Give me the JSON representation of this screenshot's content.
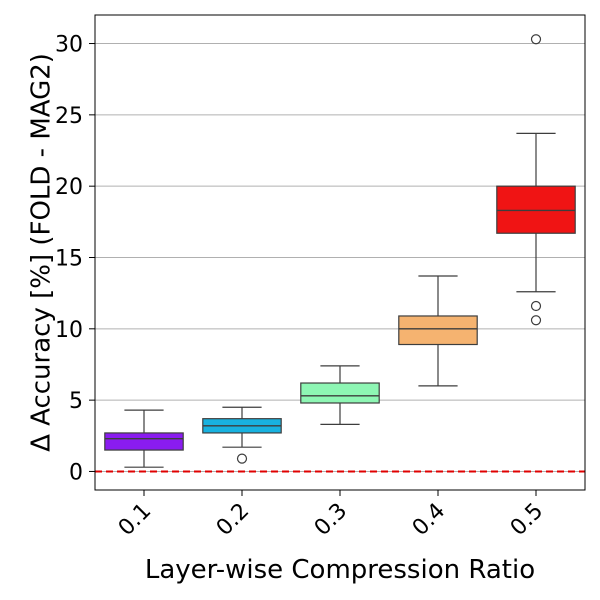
{
  "chart_data": {
    "type": "box",
    "title": "",
    "xlabel": "Layer-wise Compression Ratio",
    "ylabel": "Δ Accuracy [%] (FOLD - MAG2)",
    "ylim": [
      -1.3,
      32.0
    ],
    "yticks": [
      0,
      5,
      10,
      15,
      20,
      25,
      30
    ],
    "grid": "horizontal",
    "reference_line": {
      "y": 0,
      "color": "#e00000",
      "style": "dashed"
    },
    "categories": [
      "0.1",
      "0.2",
      "0.3",
      "0.4",
      "0.5"
    ],
    "boxes": [
      {
        "category": "0.1",
        "whisker_low": 0.3,
        "q1": 1.5,
        "median": 2.3,
        "q3": 2.7,
        "whisker_high": 4.3,
        "outliers": [],
        "color": "#8a1cf0"
      },
      {
        "category": "0.2",
        "whisker_low": 1.7,
        "q1": 2.7,
        "median": 3.2,
        "q3": 3.7,
        "whisker_high": 4.5,
        "outliers": [
          0.9
        ],
        "color": "#18b2e0"
      },
      {
        "category": "0.3",
        "whisker_low": 3.3,
        "q1": 4.8,
        "median": 5.3,
        "q3": 6.2,
        "whisker_high": 7.4,
        "outliers": [],
        "color": "#8ef6b4"
      },
      {
        "category": "0.4",
        "whisker_low": 6.0,
        "q1": 8.9,
        "median": 10.0,
        "q3": 10.9,
        "whisker_high": 13.7,
        "outliers": [],
        "color": "#f5b370"
      },
      {
        "category": "0.5",
        "whisker_low": 12.6,
        "q1": 16.7,
        "median": 18.3,
        "q3": 20.0,
        "whisker_high": 23.7,
        "outliers": [
          11.6,
          10.6,
          30.3
        ],
        "color": "#f01414"
      }
    ]
  }
}
